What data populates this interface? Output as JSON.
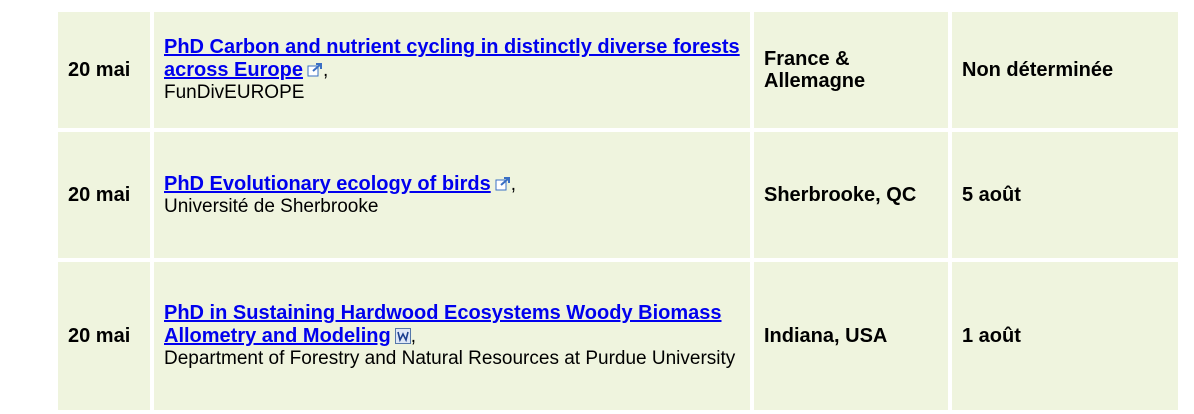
{
  "table": {
    "rows": [
      {
        "date": "20 mai",
        "title": "PhD Carbon and nutrient cycling in distinctly diverse forests across Europe",
        "punctuation": ",",
        "org": "FunDivEUROPE",
        "location": "France & Allemagne",
        "deadline": "Non déterminée"
      },
      {
        "date": "20 mai",
        "title": "PhD Evolutionary ecology of birds",
        "punctuation": ",",
        "org": "Université de Sherbrooke",
        "location": "Sherbrooke, QC",
        "deadline": "5 août"
      },
      {
        "date": "20 mai",
        "title": "PhD in Sustaining Hardwood Ecosystems Woody Biomass Allometry and Modeling",
        "punctuation": ",",
        "org": "Department of Forestry and Natural Resources at Purdue University",
        "location": "Indiana, USA",
        "deadline": "1 août"
      }
    ]
  }
}
